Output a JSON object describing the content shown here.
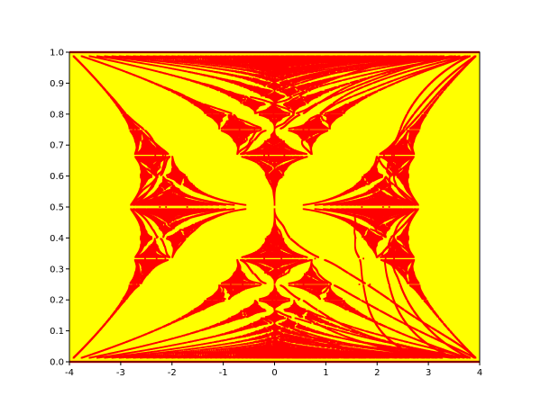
{
  "chart_data": {
    "type": "heatmap",
    "title": "",
    "xlabel": "",
    "ylabel": "",
    "xlim": [
      -4,
      4
    ],
    "ylim": [
      0,
      1
    ],
    "x_ticks": [
      -4,
      -3,
      -2,
      -1,
      0,
      1,
      2,
      3,
      4
    ],
    "x_tick_labels": [
      "-4",
      "-3",
      "-2",
      "-1",
      "0",
      "1",
      "2",
      "3",
      "4"
    ],
    "y_ticks": [
      0,
      0.1,
      0.2,
      0.3,
      0.4,
      0.5,
      0.6,
      0.7,
      0.8,
      0.9,
      1
    ],
    "y_tick_labels": [
      "0.0",
      "0.1",
      "0.2",
      "0.3",
      "0.4",
      "0.5",
      "0.6",
      "0.7",
      "0.8",
      "0.9",
      "1.0"
    ],
    "grid": false,
    "legend": "none",
    "colors": {
      "background": "#ffff00",
      "spectrum": "#ff0000",
      "axes": "#000000"
    },
    "pattern": "Hofstadter butterfly: allowed energy E on x for flux alpha = p/q on y"
  }
}
